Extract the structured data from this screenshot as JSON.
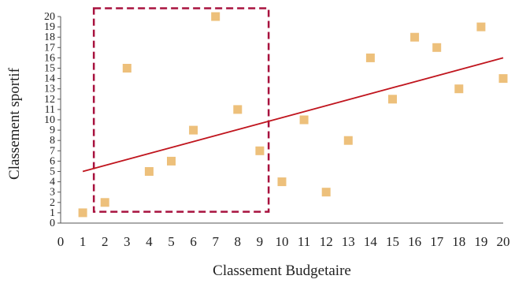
{
  "chart_data": {
    "type": "scatter",
    "xlabel": "Classement Budgetaire",
    "ylabel": "Classement sportif",
    "xlim": [
      0,
      20
    ],
    "ylim": [
      0,
      20
    ],
    "xticks": [
      "0",
      "1",
      "2",
      "3",
      "4",
      "5",
      "6",
      "7",
      "8",
      "9",
      "10",
      "11",
      "12",
      "13",
      "14",
      "15",
      "16",
      "17",
      "18",
      "19",
      "20"
    ],
    "yticks": [
      "0",
      "1",
      "2",
      "3",
      "4",
      "5",
      "6",
      "7",
      "8",
      "9",
      "10",
      "11",
      "12",
      "13",
      "14",
      "15",
      "16",
      "17",
      "18",
      "19",
      "20"
    ],
    "grid": false,
    "points": [
      {
        "x": 1,
        "y": 1
      },
      {
        "x": 2,
        "y": 2
      },
      {
        "x": 3,
        "y": 15
      },
      {
        "x": 4,
        "y": 5
      },
      {
        "x": 5,
        "y": 6
      },
      {
        "x": 6,
        "y": 9
      },
      {
        "x": 7,
        "y": 20
      },
      {
        "x": 8,
        "y": 11
      },
      {
        "x": 9,
        "y": 7
      },
      {
        "x": 10,
        "y": 4
      },
      {
        "x": 11,
        "y": 10
      },
      {
        "x": 12,
        "y": 3
      },
      {
        "x": 13,
        "y": 8
      },
      {
        "x": 14,
        "y": 16
      },
      {
        "x": 15,
        "y": 12
      },
      {
        "x": 16,
        "y": 18
      },
      {
        "x": 17,
        "y": 17
      },
      {
        "x": 18,
        "y": 13
      },
      {
        "x": 19,
        "y": 19
      },
      {
        "x": 20,
        "y": 14
      }
    ],
    "trendline": {
      "x": [
        1,
        20
      ],
      "y": [
        5.0,
        16.0
      ]
    },
    "highlight_box": {
      "x": [
        1.5,
        9.4
      ],
      "y": [
        1.1,
        20.8
      ]
    },
    "colors": {
      "marker": "#EDC07B",
      "trendline": "#C0151E",
      "highlight_box": "#A8123E",
      "axis": "#555555",
      "text": "#222222"
    }
  }
}
